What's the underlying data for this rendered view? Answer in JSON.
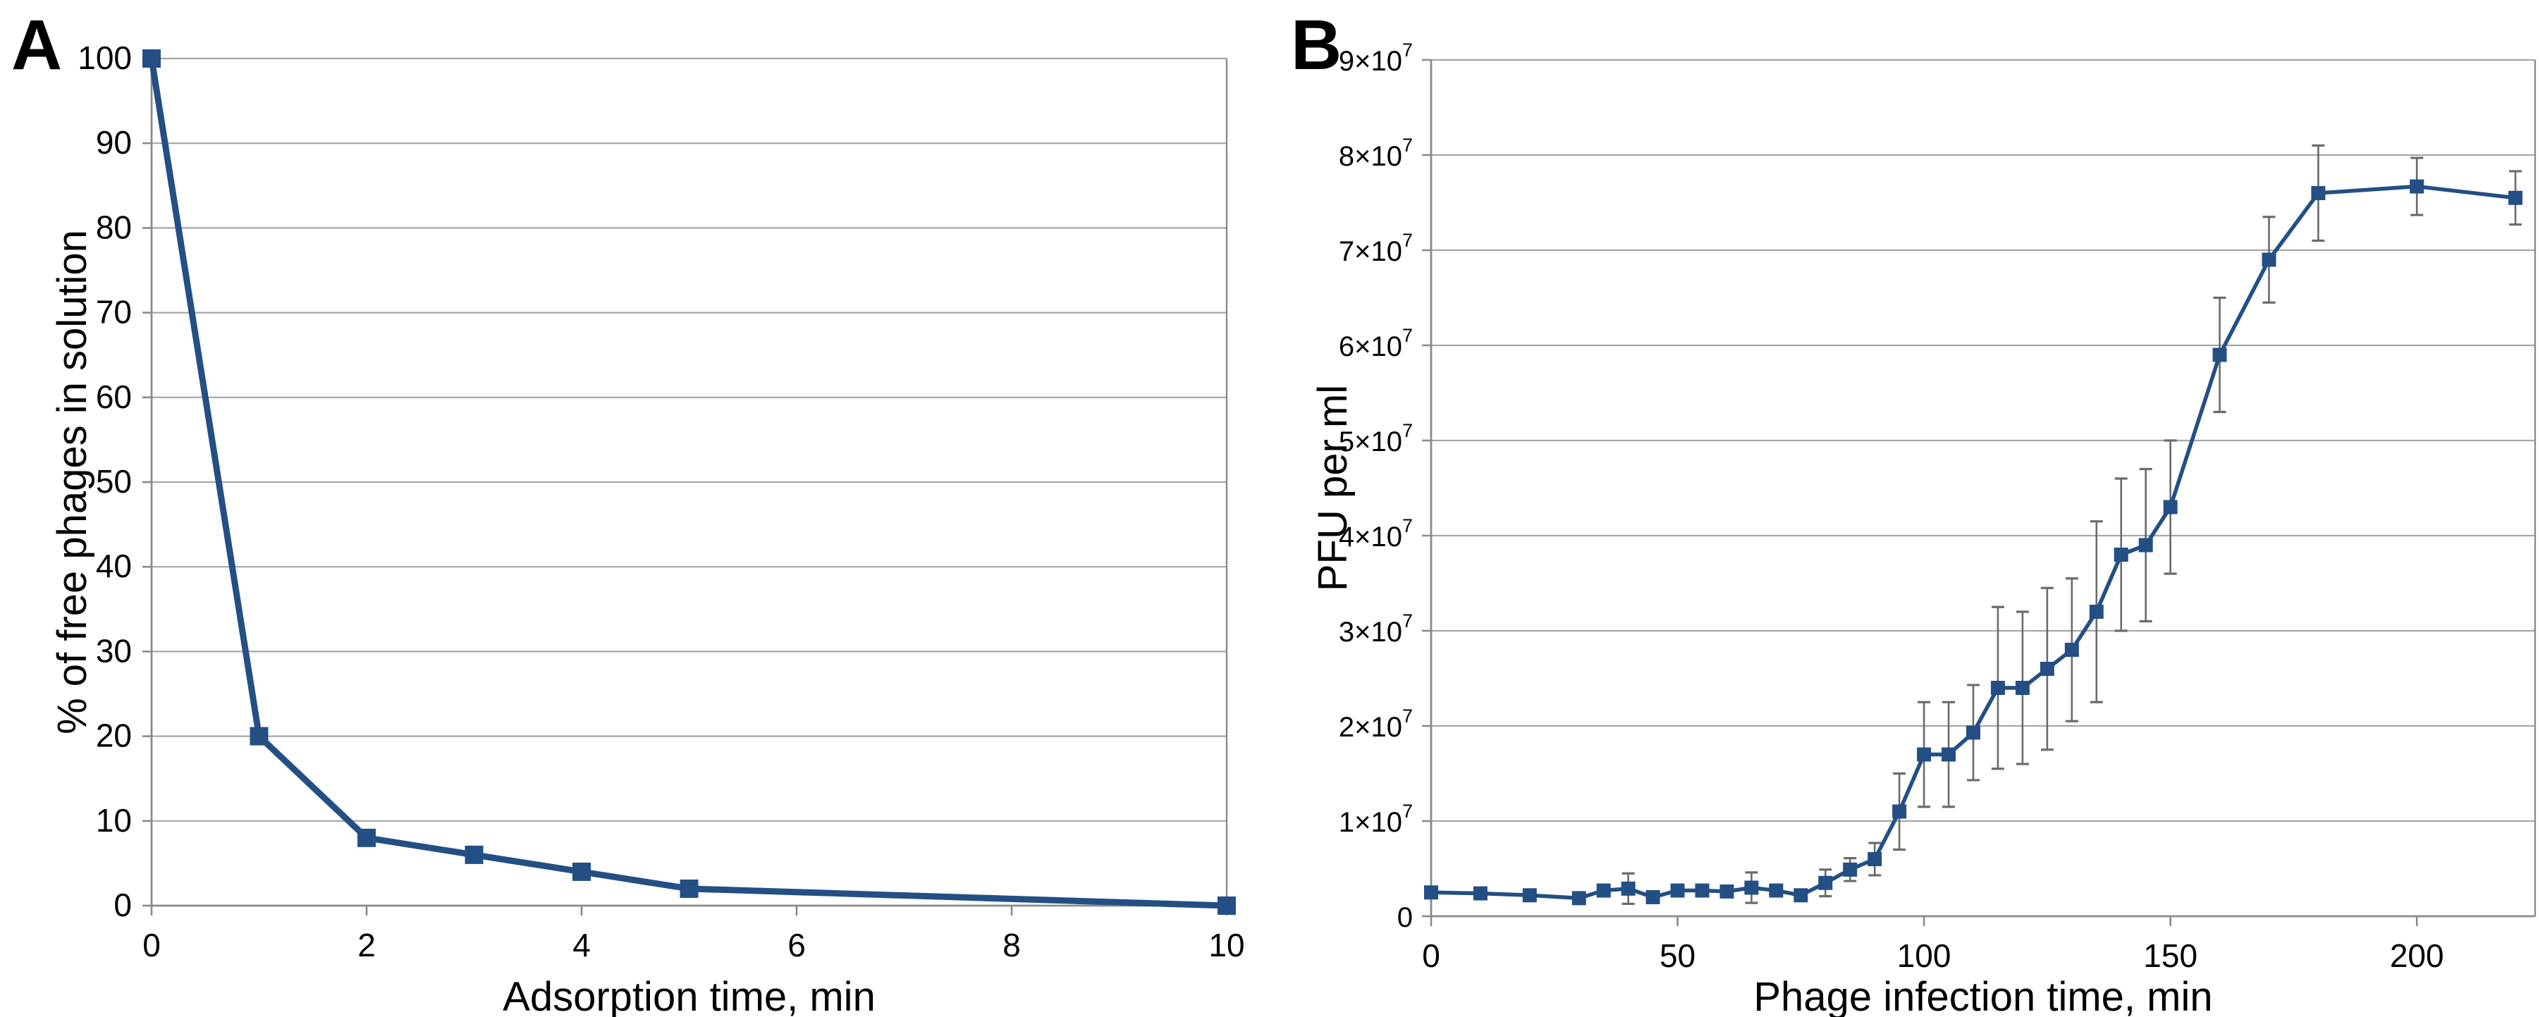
{
  "figure": {
    "background_color": "#ffffff"
  },
  "chart_data": [
    {
      "panel_label": "A",
      "type": "line",
      "title": "",
      "xlabel": "Adsorption time, min",
      "ylabel": "% of free phages in solution",
      "x": [
        0,
        1,
        2,
        3,
        4,
        5,
        10
      ],
      "y": [
        100,
        20,
        8,
        6,
        4,
        2,
        0
      ],
      "xlim": [
        0,
        10
      ],
      "ylim": [
        0,
        100
      ],
      "xticks": [
        0,
        2,
        4,
        6,
        8,
        10
      ],
      "ytick_step": 10,
      "ytick_style": "plain",
      "grid": true,
      "legend": "none",
      "marker": "square",
      "line_color": "#234f85",
      "grid_color": "#a6a6a6",
      "axis_color": "#8a8a8a",
      "text_color": "#000000"
    },
    {
      "panel_label": "B",
      "type": "line",
      "title": "",
      "xlabel": "Phage infection time, min",
      "ylabel": "PFU per ml",
      "x": [
        0,
        10,
        20,
        30,
        35,
        40,
        45,
        50,
        55,
        60,
        65,
        70,
        75,
        80,
        85,
        90,
        95,
        100,
        105,
        110,
        115,
        120,
        125,
        130,
        135,
        140,
        145,
        150,
        160,
        170,
        180,
        200,
        220
      ],
      "y": [
        2500000.0,
        2400000.0,
        2200000.0,
        1900000.0,
        2700000.0,
        2900000.0,
        2000000.0,
        2700000.0,
        2700000.0,
        2600000.0,
        3000000.0,
        2700000.0,
        2200000.0,
        3500000.0,
        4900000.0,
        6000000.0,
        11000000.0,
        17000000.0,
        17000000.0,
        19300000.0,
        24000000.0,
        24000000.0,
        26000000.0,
        28000000.0,
        32000000.0,
        38000000.0,
        39000000.0,
        43000000.0,
        59000000.0,
        69000000.0,
        76000000.0,
        76700000.0,
        75500000.0
      ],
      "yerr": [
        0,
        300000.0,
        0,
        0,
        0,
        1600000.0,
        500000.0,
        0,
        0,
        300000.0,
        1600000.0,
        0,
        500000.0,
        1400000.0,
        1200000.0,
        1700000.0,
        4000000.0,
        5500000.0,
        5500000.0,
        5000000.0,
        8500000.0,
        8000000.0,
        8500000.0,
        7500000.0,
        9500000.0,
        8000000.0,
        8000000.0,
        7000000.0,
        6000000.0,
        4500000.0,
        5000000.0,
        3000000.0,
        2800000.0
      ],
      "xlim": [
        0,
        224
      ],
      "ylim": [
        0,
        90000000.0
      ],
      "xticks": [
        0,
        50,
        100,
        150,
        200
      ],
      "ytick_step": 10000000.0,
      "ytick_style": "power10",
      "power_exponent": "7",
      "grid": true,
      "legend": "none",
      "marker": "square",
      "line_color": "#234f85",
      "error_color": "#6b6b6b",
      "grid_color": "#a6a6a6",
      "axis_color": "#8a8a8a",
      "text_color": "#000000"
    }
  ]
}
